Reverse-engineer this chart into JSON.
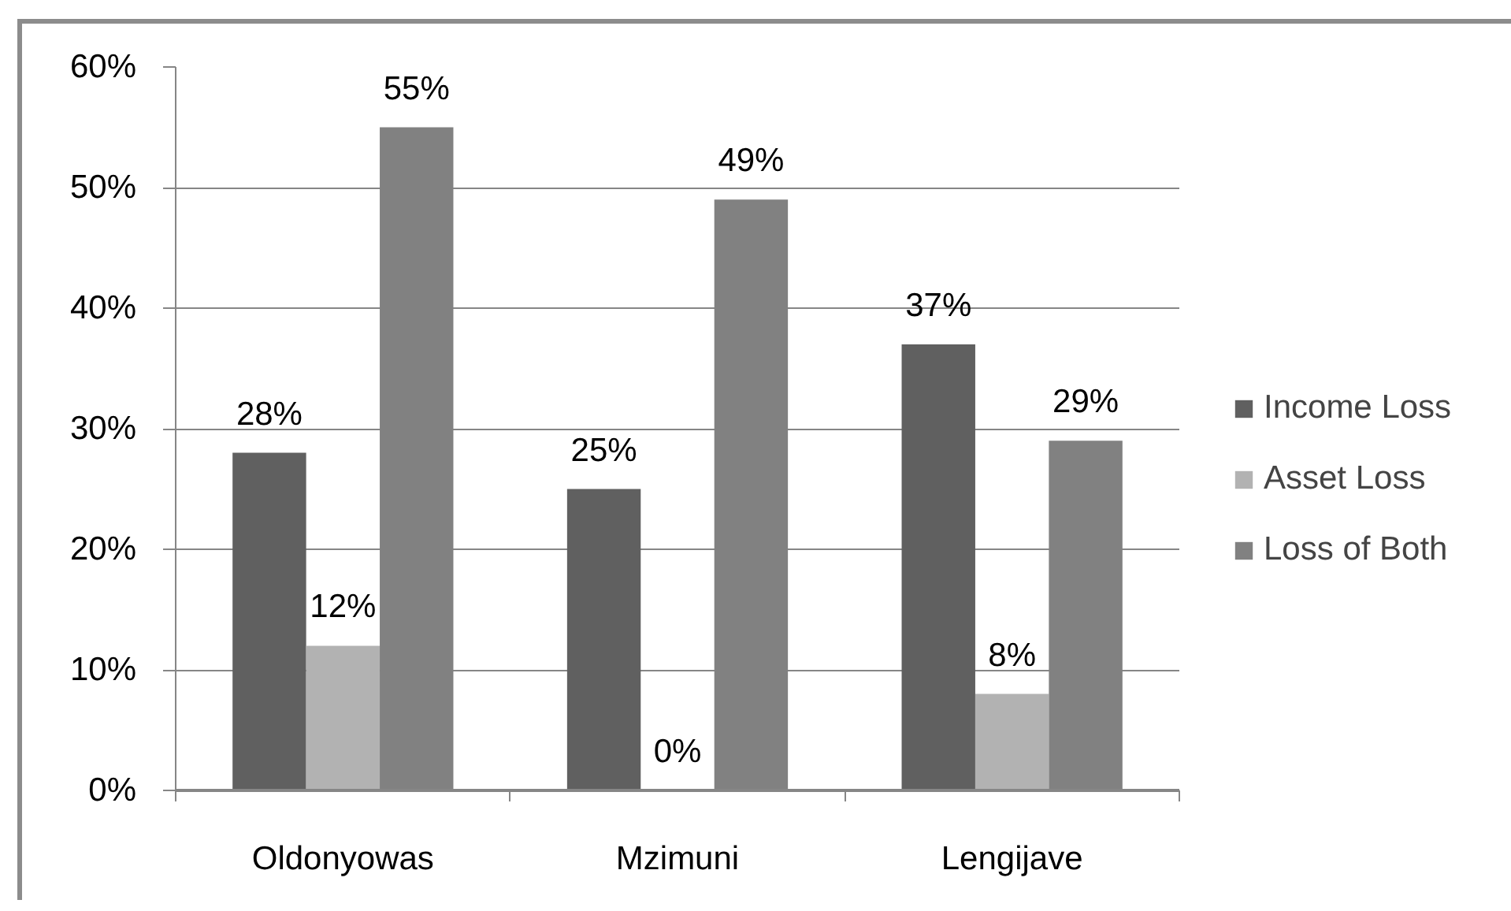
{
  "chart_data": {
    "type": "bar",
    "categories": [
      "Oldonyowas",
      "Mzimuni",
      "Lengijave"
    ],
    "series": [
      {
        "name": "Income Loss",
        "color": "#606060",
        "values": [
          28,
          25,
          37
        ],
        "value_labels": [
          "28%",
          "25%",
          "37%"
        ]
      },
      {
        "name": "Asset Loss",
        "color": "#b2b2b2",
        "values": [
          12,
          0,
          8
        ],
        "value_labels": [
          "12%",
          "0%",
          "8%"
        ]
      },
      {
        "name": "Loss of Both",
        "color": "#818181",
        "values": [
          55,
          49,
          29
        ],
        "value_labels": [
          "55%",
          "49%",
          "29%"
        ]
      }
    ],
    "ylim": [
      0,
      60
    ],
    "yticks": [
      {
        "value": 0,
        "label": "0%"
      },
      {
        "value": 10,
        "label": "10%"
      },
      {
        "value": 20,
        "label": "20%"
      },
      {
        "value": 30,
        "label": "30%"
      },
      {
        "value": 40,
        "label": "40%"
      },
      {
        "value": 50,
        "label": "50%"
      },
      {
        "value": 60,
        "label": "60%"
      }
    ],
    "grid": "y",
    "legend": "right"
  }
}
